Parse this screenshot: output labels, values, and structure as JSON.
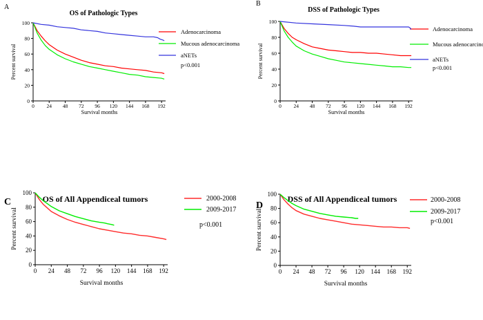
{
  "chart_data": [
    {
      "id": "A",
      "type": "line",
      "panel_label": "A",
      "title": "OS of Pathologic Types",
      "xlabel": "Survival months",
      "ylabel": "Percent survival",
      "xlim": [
        0,
        198
      ],
      "ylim": [
        0,
        100
      ],
      "xticks": [
        0,
        24,
        48,
        72,
        96,
        120,
        144,
        168,
        192
      ],
      "yticks": [
        0,
        20,
        40,
        60,
        80,
        100
      ],
      "annotation": "p<0.001",
      "series": [
        {
          "name": "Adenocarcinoma",
          "color": "#ff0000",
          "x": [
            0,
            6,
            12,
            18,
            24,
            36,
            48,
            60,
            72,
            84,
            96,
            108,
            120,
            132,
            144,
            156,
            168,
            180,
            192,
            196
          ],
          "y": [
            100,
            90,
            83,
            77,
            72,
            65,
            60,
            56,
            52,
            49,
            47,
            45,
            44,
            42,
            41,
            40,
            39,
            37,
            36,
            35
          ]
        },
        {
          "name": "Mucous adenocarcinoma",
          "color": "#00ee00",
          "x": [
            0,
            6,
            12,
            18,
            24,
            36,
            48,
            60,
            72,
            84,
            96,
            108,
            120,
            132,
            144,
            156,
            168,
            180,
            192,
            196
          ],
          "y": [
            100,
            87,
            78,
            71,
            66,
            59,
            54,
            50,
            47,
            44,
            42,
            40,
            38,
            36,
            34,
            33,
            31,
            30,
            29,
            28
          ]
        },
        {
          "name": "aNETs",
          "color": "#3333dd",
          "x": [
            0,
            12,
            24,
            36,
            48,
            60,
            72,
            84,
            96,
            108,
            120,
            132,
            144,
            156,
            168,
            180,
            186,
            190,
            194,
            196
          ],
          "y": [
            100,
            98,
            97,
            95,
            94,
            93,
            91,
            90,
            89,
            87,
            86,
            85,
            84,
            83,
            82,
            82,
            81,
            79,
            78,
            77
          ]
        }
      ]
    },
    {
      "id": "B",
      "type": "line",
      "panel_label": "B",
      "title": "DSS of Pathologic Types",
      "xlabel": "Survival months",
      "ylabel": "Percent survival",
      "xlim": [
        0,
        198
      ],
      "ylim": [
        0,
        100
      ],
      "xticks": [
        0,
        24,
        48,
        72,
        96,
        120,
        144,
        168,
        192
      ],
      "yticks": [
        0,
        20,
        40,
        60,
        80,
        100
      ],
      "annotation": "p<0.001",
      "series": [
        {
          "name": "Adenocarcinoma",
          "color": "#ff0000",
          "x": [
            0,
            6,
            12,
            18,
            24,
            36,
            48,
            60,
            72,
            84,
            96,
            108,
            120,
            132,
            144,
            156,
            168,
            180,
            192,
            196
          ],
          "y": [
            100,
            91,
            85,
            80,
            77,
            72,
            68,
            66,
            64,
            63,
            62,
            61,
            61,
            60,
            60,
            59,
            58,
            57,
            57,
            57
          ]
        },
        {
          "name": "Mucous adenocarcinoma",
          "color": "#00ee00",
          "x": [
            0,
            6,
            12,
            18,
            24,
            36,
            48,
            60,
            72,
            84,
            96,
            108,
            120,
            132,
            144,
            156,
            168,
            180,
            192,
            196
          ],
          "y": [
            100,
            88,
            80,
            74,
            69,
            63,
            59,
            56,
            53,
            51,
            49,
            48,
            47,
            46,
            45,
            44,
            43,
            43,
            42,
            42
          ]
        },
        {
          "name": "aNETs",
          "color": "#3333dd",
          "x": [
            0,
            24,
            48,
            72,
            96,
            110,
            120,
            144,
            168,
            192,
            194,
            196
          ],
          "y": [
            100,
            98,
            97,
            96,
            95,
            94,
            93,
            93,
            93,
            93,
            92,
            90
          ]
        }
      ]
    },
    {
      "id": "C",
      "type": "line",
      "panel_label": "C",
      "title": "OS of All Appendiceal tumors",
      "xlabel": "Survival months",
      "ylabel": "Percent survival",
      "xlim": [
        0,
        198
      ],
      "ylim": [
        0,
        100
      ],
      "xticks": [
        0,
        24,
        48,
        72,
        96,
        120,
        144,
        168,
        192
      ],
      "yticks": [
        0,
        20,
        40,
        60,
        80,
        100
      ],
      "annotation": "p<0.001",
      "series": [
        {
          "name": "2000-2008",
          "color": "#ff2a2a",
          "x": [
            0,
            6,
            12,
            18,
            24,
            36,
            48,
            60,
            72,
            84,
            96,
            108,
            120,
            132,
            144,
            156,
            168,
            180,
            192,
            196
          ],
          "y": [
            100,
            91,
            84,
            79,
            74,
            68,
            63,
            59,
            56,
            53,
            50,
            48,
            46,
            44,
            43,
            41,
            40,
            38,
            36,
            35
          ]
        },
        {
          "name": "2009-2017",
          "color": "#00ee00",
          "x": [
            0,
            6,
            12,
            18,
            24,
            36,
            48,
            60,
            72,
            84,
            96,
            104,
            108,
            114,
            118
          ],
          "y": [
            100,
            94,
            89,
            85,
            81,
            75,
            71,
            67,
            64,
            61,
            59,
            58,
            57,
            56,
            55
          ]
        }
      ]
    },
    {
      "id": "D",
      "type": "line",
      "panel_label": "D",
      "title": "DSS of All Appendiceal tumors",
      "xlabel": "Survival months",
      "ylabel": "Percent survival",
      "xlim": [
        0,
        198
      ],
      "ylim": [
        0,
        100
      ],
      "xticks": [
        0,
        24,
        48,
        72,
        96,
        120,
        144,
        168,
        192
      ],
      "yticks": [
        0,
        20,
        40,
        60,
        80,
        100
      ],
      "annotation": "p<0.001",
      "series": [
        {
          "name": "2000-2008",
          "color": "#ff2a2a",
          "x": [
            0,
            6,
            12,
            18,
            24,
            36,
            48,
            60,
            72,
            84,
            96,
            108,
            120,
            132,
            144,
            156,
            168,
            180,
            192,
            196
          ],
          "y": [
            100,
            92,
            86,
            81,
            77,
            72,
            69,
            66,
            64,
            62,
            60,
            58,
            57,
            56,
            55,
            54,
            54,
            53,
            53,
            52
          ]
        },
        {
          "name": "2009-2017",
          "color": "#00ee00",
          "x": [
            0,
            6,
            12,
            18,
            24,
            36,
            48,
            60,
            72,
            84,
            96,
            108,
            114,
            118
          ],
          "y": [
            100,
            95,
            91,
            87,
            84,
            79,
            76,
            73,
            71,
            69,
            68,
            67,
            66,
            66
          ]
        }
      ]
    }
  ]
}
